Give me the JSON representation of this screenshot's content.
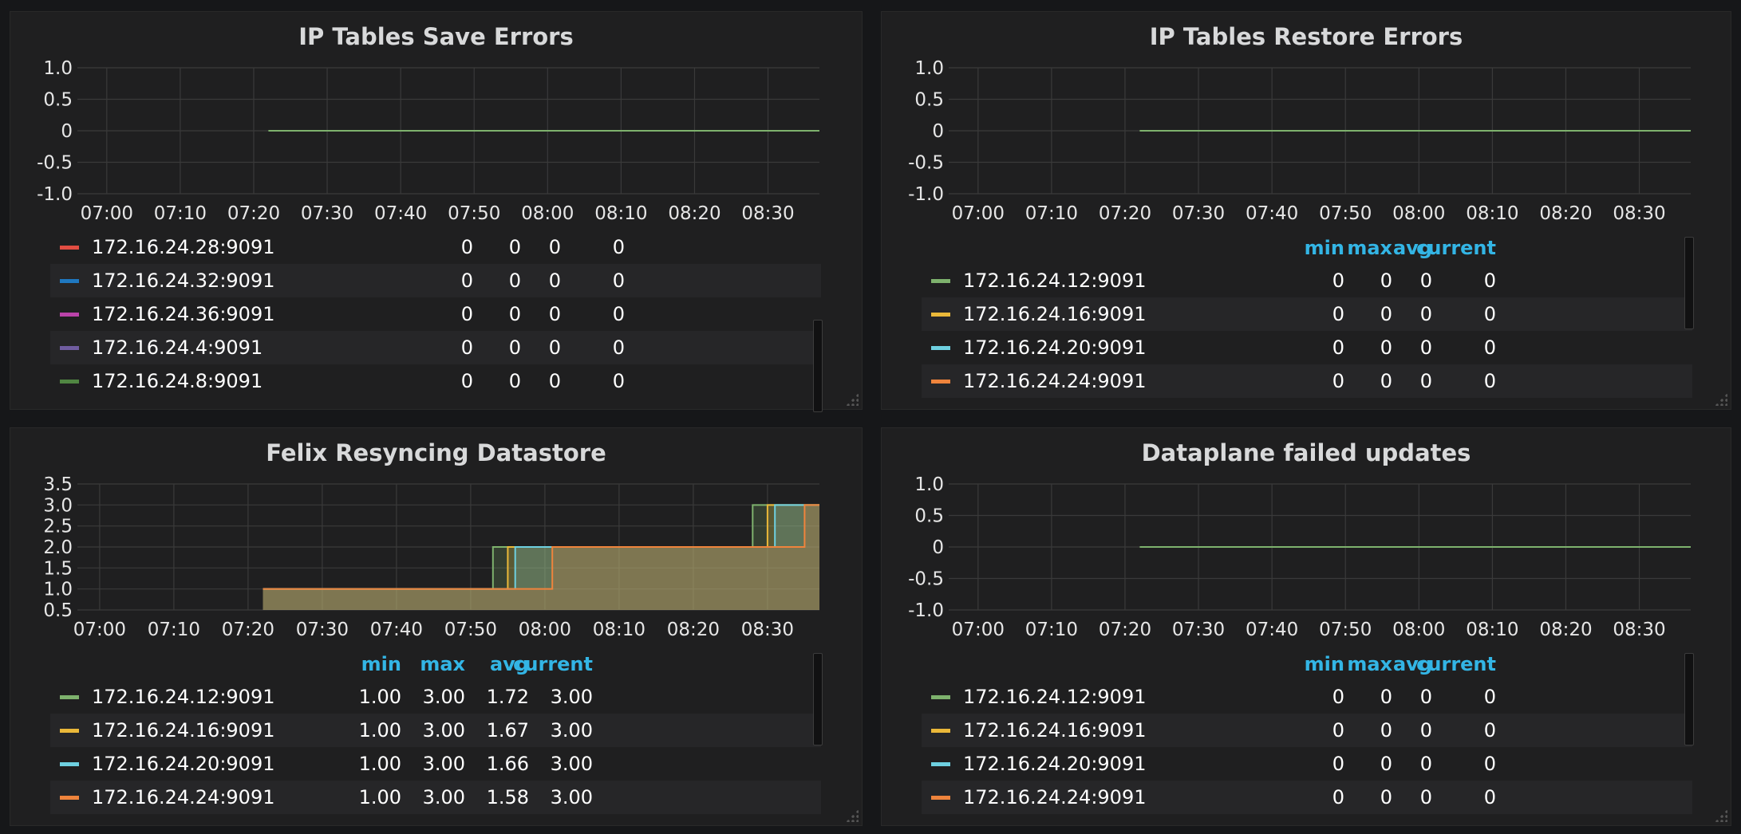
{
  "colors": {
    "series": [
      "#e24d42",
      "#1f78c1",
      "#ba43a9",
      "#705da0",
      "#508642",
      "#7eb26d",
      "#eab839",
      "#6ed0e0",
      "#ef843c"
    ],
    "line": "#7eb26d",
    "legend_header": "#33b5e5"
  },
  "x_ticks": [
    "07:00",
    "07:10",
    "07:20",
    "07:30",
    "07:40",
    "07:50",
    "08:00",
    "08:10",
    "08:20",
    "08:30"
  ],
  "legend_headers": {
    "min": "min",
    "max": "max",
    "avg": "avg",
    "current": "current"
  },
  "panels": [
    {
      "title": "IP Tables Save Errors",
      "chart_data": {
        "type": "line",
        "x_ticks": [
          "07:00",
          "07:10",
          "07:20",
          "07:30",
          "07:40",
          "07:50",
          "08:00",
          "08:10",
          "08:20",
          "08:30"
        ],
        "y_ticks": [
          "1.0",
          "0.5",
          "0",
          "-0.5",
          "-1.0"
        ],
        "ylim": [
          -1.0,
          1.0
        ],
        "x_range": [
          "06:56",
          "08:37"
        ],
        "data_start": "07:22",
        "series_value": 0,
        "grid": true
      },
      "show_headers": false,
      "rows": [
        {
          "name": "172.16.24.28:9091",
          "color": "#e24d42",
          "min": "0",
          "max": "0",
          "avg": "0",
          "current": "0"
        },
        {
          "name": "172.16.24.32:9091",
          "color": "#1f78c1",
          "min": "0",
          "max": "0",
          "avg": "0",
          "current": "0"
        },
        {
          "name": "172.16.24.36:9091",
          "color": "#ba43a9",
          "min": "0",
          "max": "0",
          "avg": "0",
          "current": "0"
        },
        {
          "name": "172.16.24.4:9091",
          "color": "#705da0",
          "min": "0",
          "max": "0",
          "avg": "0",
          "current": "0"
        },
        {
          "name": "172.16.24.8:9091",
          "color": "#508642",
          "min": "0",
          "max": "0",
          "avg": "0",
          "current": "0"
        }
      ]
    },
    {
      "title": "IP Tables Restore Errors",
      "chart_data": {
        "type": "line",
        "x_ticks": [
          "07:00",
          "07:10",
          "07:20",
          "07:30",
          "07:40",
          "07:50",
          "08:00",
          "08:10",
          "08:20",
          "08:30"
        ],
        "y_ticks": [
          "1.0",
          "0.5",
          "0",
          "-0.5",
          "-1.0"
        ],
        "ylim": [
          -1.0,
          1.0
        ],
        "x_range": [
          "06:56",
          "08:37"
        ],
        "data_start": "07:22",
        "series_value": 0,
        "grid": true
      },
      "show_headers": true,
      "rows": [
        {
          "name": "172.16.24.12:9091",
          "color": "#7eb26d",
          "min": "0",
          "max": "0",
          "avg": "0",
          "current": "0"
        },
        {
          "name": "172.16.24.16:9091",
          "color": "#eab839",
          "min": "0",
          "max": "0",
          "avg": "0",
          "current": "0"
        },
        {
          "name": "172.16.24.20:9091",
          "color": "#6ed0e0",
          "min": "0",
          "max": "0",
          "avg": "0",
          "current": "0"
        },
        {
          "name": "172.16.24.24:9091",
          "color": "#ef843c",
          "min": "0",
          "max": "0",
          "avg": "0",
          "current": "0"
        }
      ]
    },
    {
      "title": "Felix Resyncing Datastore",
      "chart_data": {
        "type": "area",
        "x_ticks": [
          "07:00",
          "07:10",
          "07:20",
          "07:30",
          "07:40",
          "07:50",
          "08:00",
          "08:10",
          "08:20",
          "08:30"
        ],
        "y_ticks": [
          "3.5",
          "3.0",
          "2.5",
          "2.0",
          "1.5",
          "1.0",
          "0.5"
        ],
        "ylim": [
          0.5,
          3.5
        ],
        "x_range": [
          "06:57",
          "08:37"
        ],
        "data_start": "07:22",
        "series": [
          {
            "name": "172.16.24.12:9091",
            "steps": [
              [
                "07:22",
                1
              ],
              [
                "07:53",
                2
              ],
              [
                "08:28",
                3
              ]
            ]
          },
          {
            "name": "172.16.24.16:9091",
            "steps": [
              [
                "07:22",
                1
              ],
              [
                "07:55",
                2
              ],
              [
                "08:30",
                3
              ]
            ]
          },
          {
            "name": "172.16.24.20:9091",
            "steps": [
              [
                "07:22",
                1
              ],
              [
                "07:56",
                2
              ],
              [
                "08:31",
                3
              ]
            ]
          },
          {
            "name": "172.16.24.24:9091",
            "steps": [
              [
                "07:22",
                1
              ],
              [
                "08:01",
                2
              ],
              [
                "08:35",
                3
              ]
            ]
          }
        ],
        "grid": true
      },
      "show_headers": true,
      "rows": [
        {
          "name": "172.16.24.12:9091",
          "color": "#7eb26d",
          "min": "1.00",
          "max": "3.00",
          "avg": "1.72",
          "current": "3.00"
        },
        {
          "name": "172.16.24.16:9091",
          "color": "#eab839",
          "min": "1.00",
          "max": "3.00",
          "avg": "1.67",
          "current": "3.00"
        },
        {
          "name": "172.16.24.20:9091",
          "color": "#6ed0e0",
          "min": "1.00",
          "max": "3.00",
          "avg": "1.66",
          "current": "3.00"
        },
        {
          "name": "172.16.24.24:9091",
          "color": "#ef843c",
          "min": "1.00",
          "max": "3.00",
          "avg": "1.58",
          "current": "3.00"
        }
      ]
    },
    {
      "title": "Dataplane failed updates",
      "chart_data": {
        "type": "line",
        "x_ticks": [
          "07:00",
          "07:10",
          "07:20",
          "07:30",
          "07:40",
          "07:50",
          "08:00",
          "08:10",
          "08:20",
          "08:30"
        ],
        "y_ticks": [
          "1.0",
          "0.5",
          "0",
          "-0.5",
          "-1.0"
        ],
        "ylim": [
          -1.0,
          1.0
        ],
        "x_range": [
          "06:56",
          "08:37"
        ],
        "data_start": "07:22",
        "series_value": 0,
        "grid": true
      },
      "show_headers": true,
      "rows": [
        {
          "name": "172.16.24.12:9091",
          "color": "#7eb26d",
          "min": "0",
          "max": "0",
          "avg": "0",
          "current": "0"
        },
        {
          "name": "172.16.24.16:9091",
          "color": "#eab839",
          "min": "0",
          "max": "0",
          "avg": "0",
          "current": "0"
        },
        {
          "name": "172.16.24.20:9091",
          "color": "#6ed0e0",
          "min": "0",
          "max": "0",
          "avg": "0",
          "current": "0"
        },
        {
          "name": "172.16.24.24:9091",
          "color": "#ef843c",
          "min": "0",
          "max": "0",
          "avg": "0",
          "current": "0"
        }
      ]
    }
  ]
}
